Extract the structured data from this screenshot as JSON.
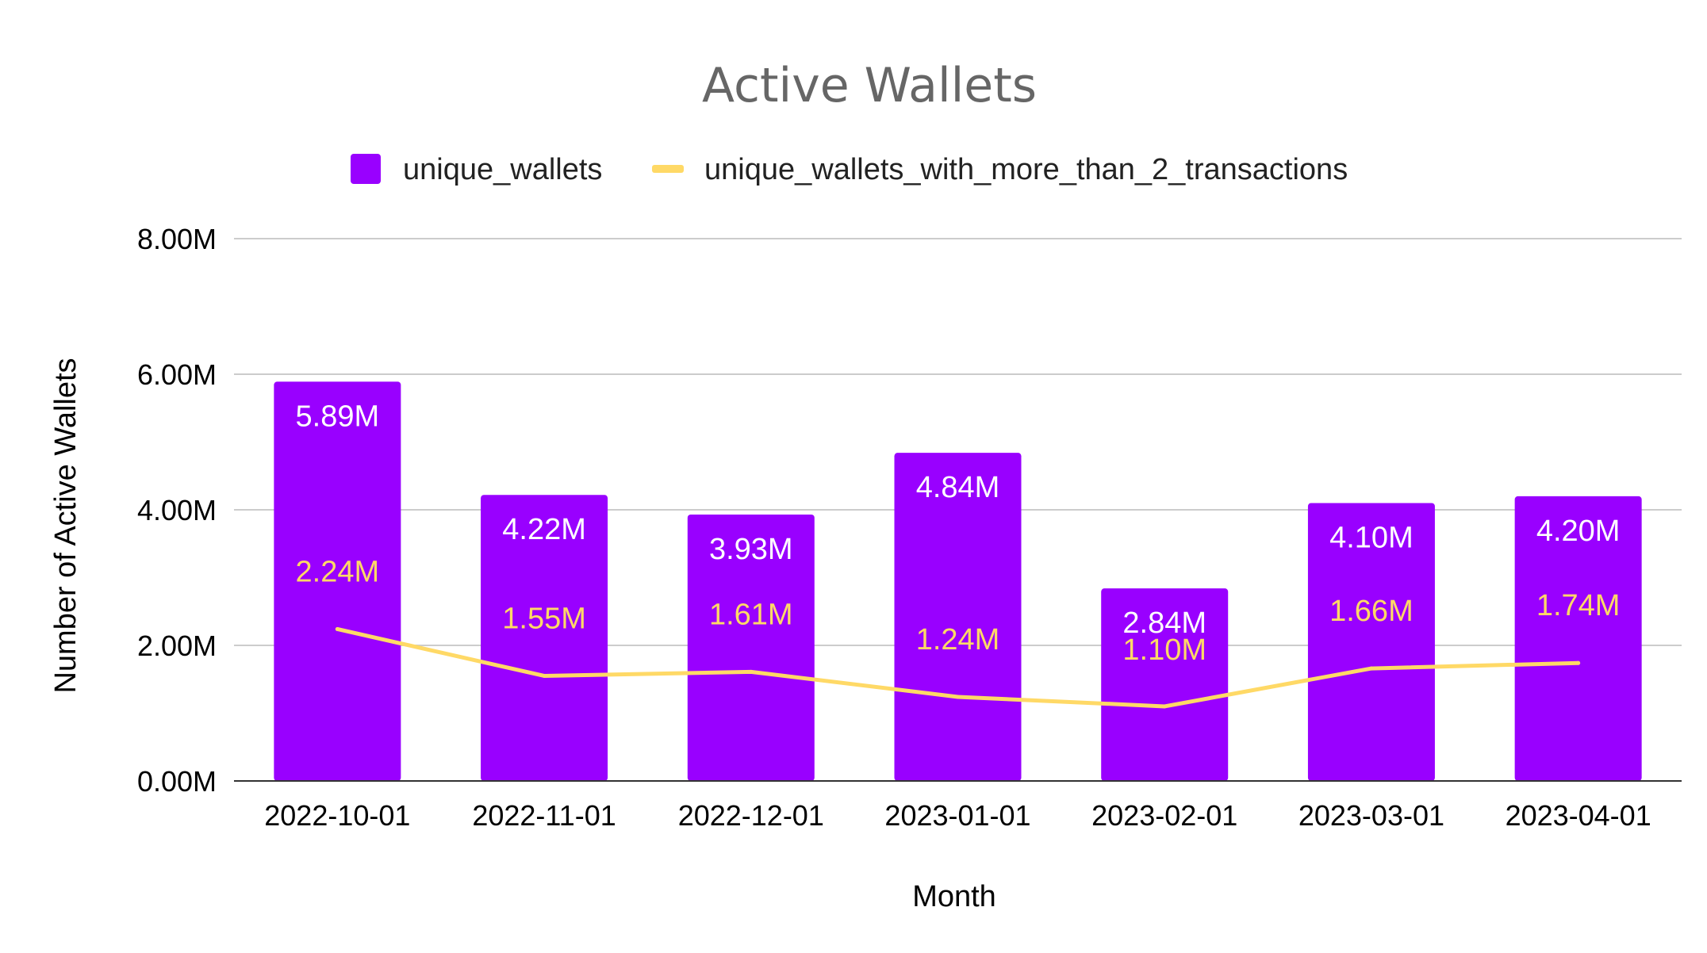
{
  "chart_data": {
    "type": "bar",
    "title": "Active Wallets",
    "xlabel": "Month",
    "ylabel": "Number of Active Wallets",
    "ylim": [
      0,
      8
    ],
    "yticks": [
      "0.00M",
      "2.00M",
      "4.00M",
      "6.00M",
      "8.00M"
    ],
    "ytick_values": [
      0,
      2,
      4,
      6,
      8
    ],
    "grid": true,
    "legend_position": "top",
    "categories": [
      "2022-10-01",
      "2022-11-01",
      "2022-12-01",
      "2023-01-01",
      "2023-02-01",
      "2023-03-01",
      "2023-04-01"
    ],
    "series": [
      {
        "name": "unique_wallets",
        "kind": "bar",
        "color": "#9900ff",
        "label_color": "#ffffff",
        "values": [
          5.89,
          4.22,
          3.93,
          4.84,
          2.84,
          4.1,
          4.2
        ],
        "labels": [
          "5.89M",
          "4.22M",
          "3.93M",
          "4.84M",
          "2.84M",
          "4.10M",
          "4.20M"
        ]
      },
      {
        "name": "unique_wallets_with_more_than_2_transactions",
        "kind": "line",
        "color": "#ffd966",
        "label_color": "#ffd966",
        "values": [
          2.24,
          1.55,
          1.61,
          1.24,
          1.1,
          1.66,
          1.74
        ],
        "labels": [
          "2.24M",
          "1.55M",
          "1.61M",
          "1.24M",
          "1.10M",
          "1.66M",
          "1.74M"
        ]
      }
    ]
  }
}
